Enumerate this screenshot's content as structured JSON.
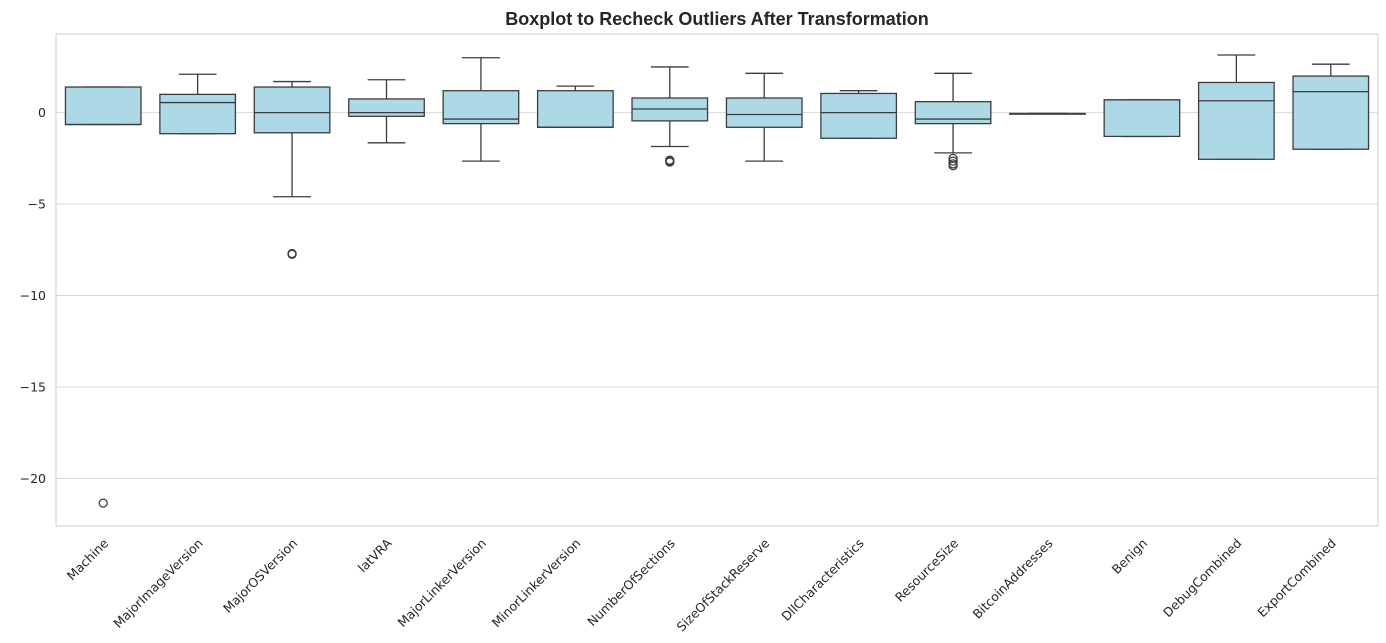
{
  "chart_data": {
    "type": "boxplot",
    "title": "Boxplot to Recheck Outliers After Transformation",
    "xlabel": "",
    "ylabel": "",
    "ylim": [
      -22.6,
      4.3
    ],
    "yticks": [
      0,
      -5,
      -10,
      -15,
      -20
    ],
    "ytick_labels": [
      "0",
      "−5",
      "−10",
      "−15",
      "−20"
    ],
    "grid": "horizontal",
    "colors": {
      "box_fill": "#add8e6",
      "box_edge": "#3d3d3d",
      "grid": "#d9d9d9",
      "frame": "#cccccc"
    },
    "categories": [
      "Machine",
      "MajorImageVersion",
      "MajorOSVersion",
      "latVRA",
      "MajorLinkerVersion",
      "MinorLinkerVersion",
      "NumberOfSections",
      "SizeOfStackReserve",
      "DllCharacteristics",
      "ResourceSize",
      "BitcoinAddresses",
      "Benign",
      "DebugCombined",
      "ExportCombined"
    ],
    "boxes": [
      {
        "whislo": -0.65,
        "q1": -0.65,
        "med": -0.65,
        "q3": 1.4,
        "whishi": 1.4,
        "fliers": [
          -21.35
        ]
      },
      {
        "whislo": -1.15,
        "q1": -1.15,
        "med": 0.55,
        "q3": 1.0,
        "whishi": 2.1,
        "fliers": []
      },
      {
        "whislo": -4.6,
        "q1": -1.1,
        "med": 0.0,
        "q3": 1.4,
        "whishi": 1.7,
        "fliers": [
          -7.75,
          -7.7
        ]
      },
      {
        "whislo": -1.65,
        "q1": -0.2,
        "med": 0.0,
        "q3": 0.75,
        "whishi": 1.8,
        "fliers": []
      },
      {
        "whislo": -2.65,
        "q1": -0.6,
        "med": -0.35,
        "q3": 1.2,
        "whishi": 3.0,
        "fliers": []
      },
      {
        "whislo": -0.8,
        "q1": -0.8,
        "med": -0.8,
        "q3": 1.2,
        "whishi": 1.45,
        "fliers": []
      },
      {
        "whislo": -1.85,
        "q1": -0.45,
        "med": 0.2,
        "q3": 0.8,
        "whishi": 2.5,
        "fliers": [
          -2.6,
          -2.65,
          -2.7
        ]
      },
      {
        "whislo": -2.65,
        "q1": -0.8,
        "med": -0.1,
        "q3": 0.8,
        "whishi": 2.15,
        "fliers": []
      },
      {
        "whislo": -1.4,
        "q1": -1.4,
        "med": 0.0,
        "q3": 1.05,
        "whishi": 1.2,
        "fliers": []
      },
      {
        "whislo": -2.2,
        "q1": -0.6,
        "med": -0.35,
        "q3": 0.6,
        "whishi": 2.15,
        "fliers": [
          -2.5,
          -2.65,
          -2.8,
          -2.9
        ]
      },
      {
        "whislo": -0.05,
        "q1": -0.05,
        "med": -0.05,
        "q3": -0.05,
        "whishi": -0.05,
        "fliers": []
      },
      {
        "whislo": -1.3,
        "q1": -1.3,
        "med": 0.7,
        "q3": 0.7,
        "whishi": 0.7,
        "fliers": []
      },
      {
        "whislo": -2.55,
        "q1": -2.55,
        "med": 0.65,
        "q3": 1.65,
        "whishi": 3.15,
        "fliers": []
      },
      {
        "whislo": -2.0,
        "q1": -2.0,
        "med": 1.15,
        "q3": 2.0,
        "whishi": 2.65,
        "fliers": []
      }
    ]
  }
}
